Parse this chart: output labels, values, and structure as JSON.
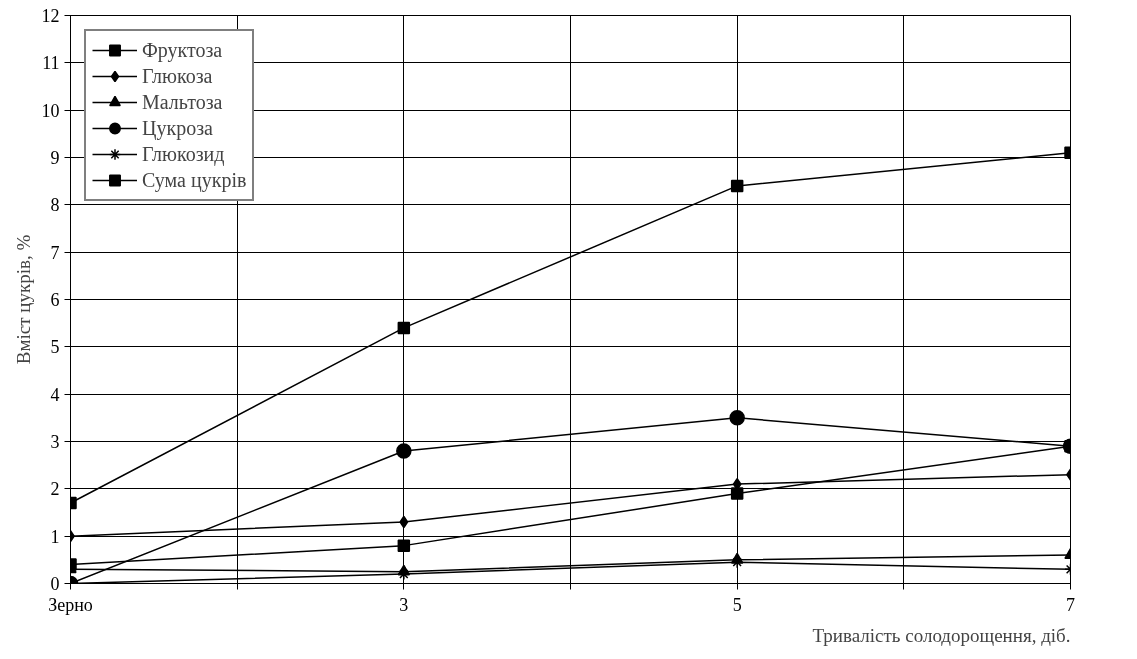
{
  "chart_data": {
    "type": "line",
    "xlabel": "Тривалість солодорощення, діб.",
    "ylabel": "Вміст цукрів, %",
    "x": [
      1,
      3,
      5,
      7
    ],
    "xlim": [
      1,
      7
    ],
    "xticks": [
      {
        "value": 1,
        "label": "Зерно"
      },
      {
        "value": 2,
        "label": null
      },
      3,
      {
        "value": 4,
        "label": null
      },
      5,
      {
        "value": 6,
        "label": null
      },
      7
    ],
    "ylim": [
      0,
      12
    ],
    "yticks": [
      0,
      1,
      2,
      3,
      4,
      5,
      6,
      7,
      8,
      9,
      10,
      11,
      12
    ],
    "grid": true,
    "legend": "top left",
    "line_style": "solid",
    "series": [
      {
        "name": "Фруктоза",
        "color": "#000000",
        "marker": "square",
        "values": [
          0.4,
          0.8,
          1.9,
          2.9
        ]
      },
      {
        "name": "Глюкоза",
        "color": "#000000",
        "marker": "diamond",
        "values": [
          1.0,
          1.3,
          2.1,
          2.3
        ]
      },
      {
        "name": "Мальтоза",
        "color": "#000000",
        "marker": "triangle",
        "values": [
          0.3,
          0.25,
          0.5,
          0.6
        ]
      },
      {
        "name": "Цукроза",
        "color": "#000000",
        "marker": "circle",
        "values": [
          0.0,
          2.8,
          3.5,
          2.9
        ]
      },
      {
        "name": "Глюкозид",
        "color": "#000000",
        "marker": "cross",
        "values": [
          0.0,
          0.2,
          0.45,
          0.3
        ]
      },
      {
        "name": "Сума цукрів",
        "color": "#000000",
        "marker": "square",
        "values": [
          1.7,
          5.4,
          8.4,
          9.1
        ]
      }
    ]
  }
}
